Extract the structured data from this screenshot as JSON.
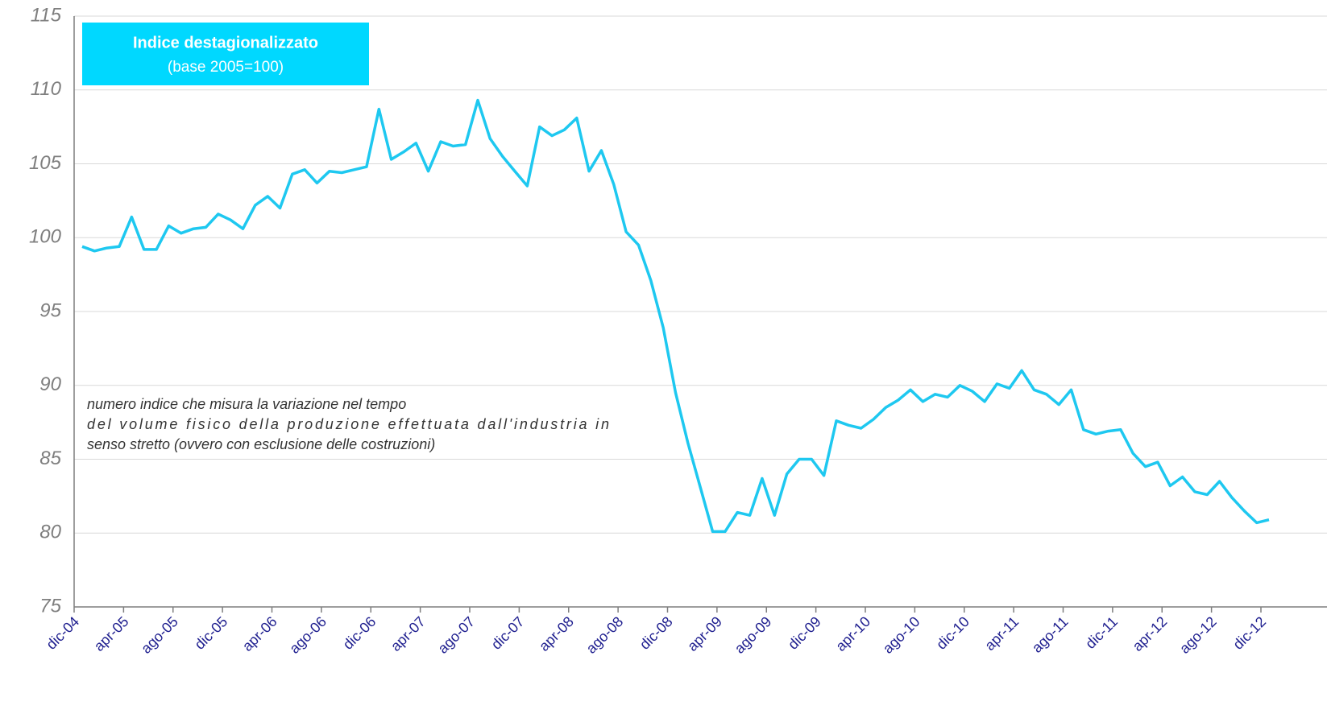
{
  "chart_data": {
    "type": "line",
    "title": "Indice destagionalizzato",
    "subtitle": "(base 2005=100)",
    "annotation": [
      "numero indice che misura la variazione nel tempo",
      "del volume fisico della produzione effettuata dall'industria in",
      "senso stretto (ovvero con esclusione delle costruzioni)"
    ],
    "categories": [
      "dic-04",
      null,
      null,
      null,
      "apr-05",
      null,
      null,
      null,
      "ago-05",
      null,
      null,
      null,
      "dic-05",
      null,
      null,
      null,
      "apr-06",
      null,
      null,
      null,
      "ago-06",
      null,
      null,
      null,
      "dic-06",
      null,
      null,
      null,
      "apr-07",
      null,
      null,
      null,
      "ago-07",
      null,
      null,
      null,
      "dic-07",
      null,
      null,
      null,
      "apr-08",
      null,
      null,
      null,
      "ago-08",
      null,
      null,
      null,
      "dic-08",
      null,
      null,
      null,
      "apr-09",
      null,
      null,
      null,
      "ago-09",
      null,
      null,
      null,
      "dic-09",
      null,
      null,
      null,
      "apr-10",
      null,
      null,
      null,
      "ago-10",
      null,
      null,
      null,
      "dic-10",
      null,
      null,
      null,
      "apr-11",
      null,
      null,
      null,
      "ago-11",
      null,
      null,
      null,
      "dic-11",
      null,
      null,
      null,
      "apr-12",
      null,
      null,
      null,
      "ago-12",
      null,
      null,
      null,
      "dic-12"
    ],
    "series": [
      {
        "name": "Indice destagionalizzato",
        "color": "#1ec8f0",
        "values": [
          99.4,
          99.1,
          99.3,
          99.4,
          101.4,
          99.2,
          99.2,
          100.8,
          100.3,
          100.6,
          100.7,
          101.6,
          101.2,
          100.6,
          102.2,
          102.8,
          102.0,
          104.3,
          104.6,
          103.7,
          104.5,
          104.4,
          104.6,
          104.8,
          108.7,
          105.3,
          105.8,
          106.4,
          104.5,
          106.5,
          106.2,
          106.3,
          109.3,
          106.7,
          105.5,
          104.5,
          103.5,
          107.5,
          106.9,
          107.3,
          108.1,
          104.5,
          105.9,
          103.6,
          100.4,
          99.5,
          97.1,
          93.9,
          89.5,
          86.1,
          83.1,
          80.1,
          80.1,
          81.4,
          81.2,
          83.7,
          81.2,
          84.0,
          85.0,
          85.0,
          83.9,
          87.6,
          87.3,
          87.1,
          87.7,
          88.5,
          89.0,
          89.7,
          88.9,
          89.4,
          89.2,
          90.0,
          89.6,
          88.9,
          90.1,
          89.8,
          91.0,
          89.7,
          89.4,
          88.7,
          89.7,
          87.0,
          86.7,
          86.9,
          87.0,
          85.4,
          84.5,
          84.8,
          83.2,
          83.8,
          82.8,
          82.6,
          83.5,
          82.4,
          81.5,
          80.7,
          80.9
        ]
      }
    ],
    "ylim": [
      75,
      115
    ],
    "yticks": [
      75,
      80,
      85,
      90,
      95,
      100,
      105,
      110,
      115
    ],
    "grid": true,
    "box_color": "#00d8ff"
  }
}
